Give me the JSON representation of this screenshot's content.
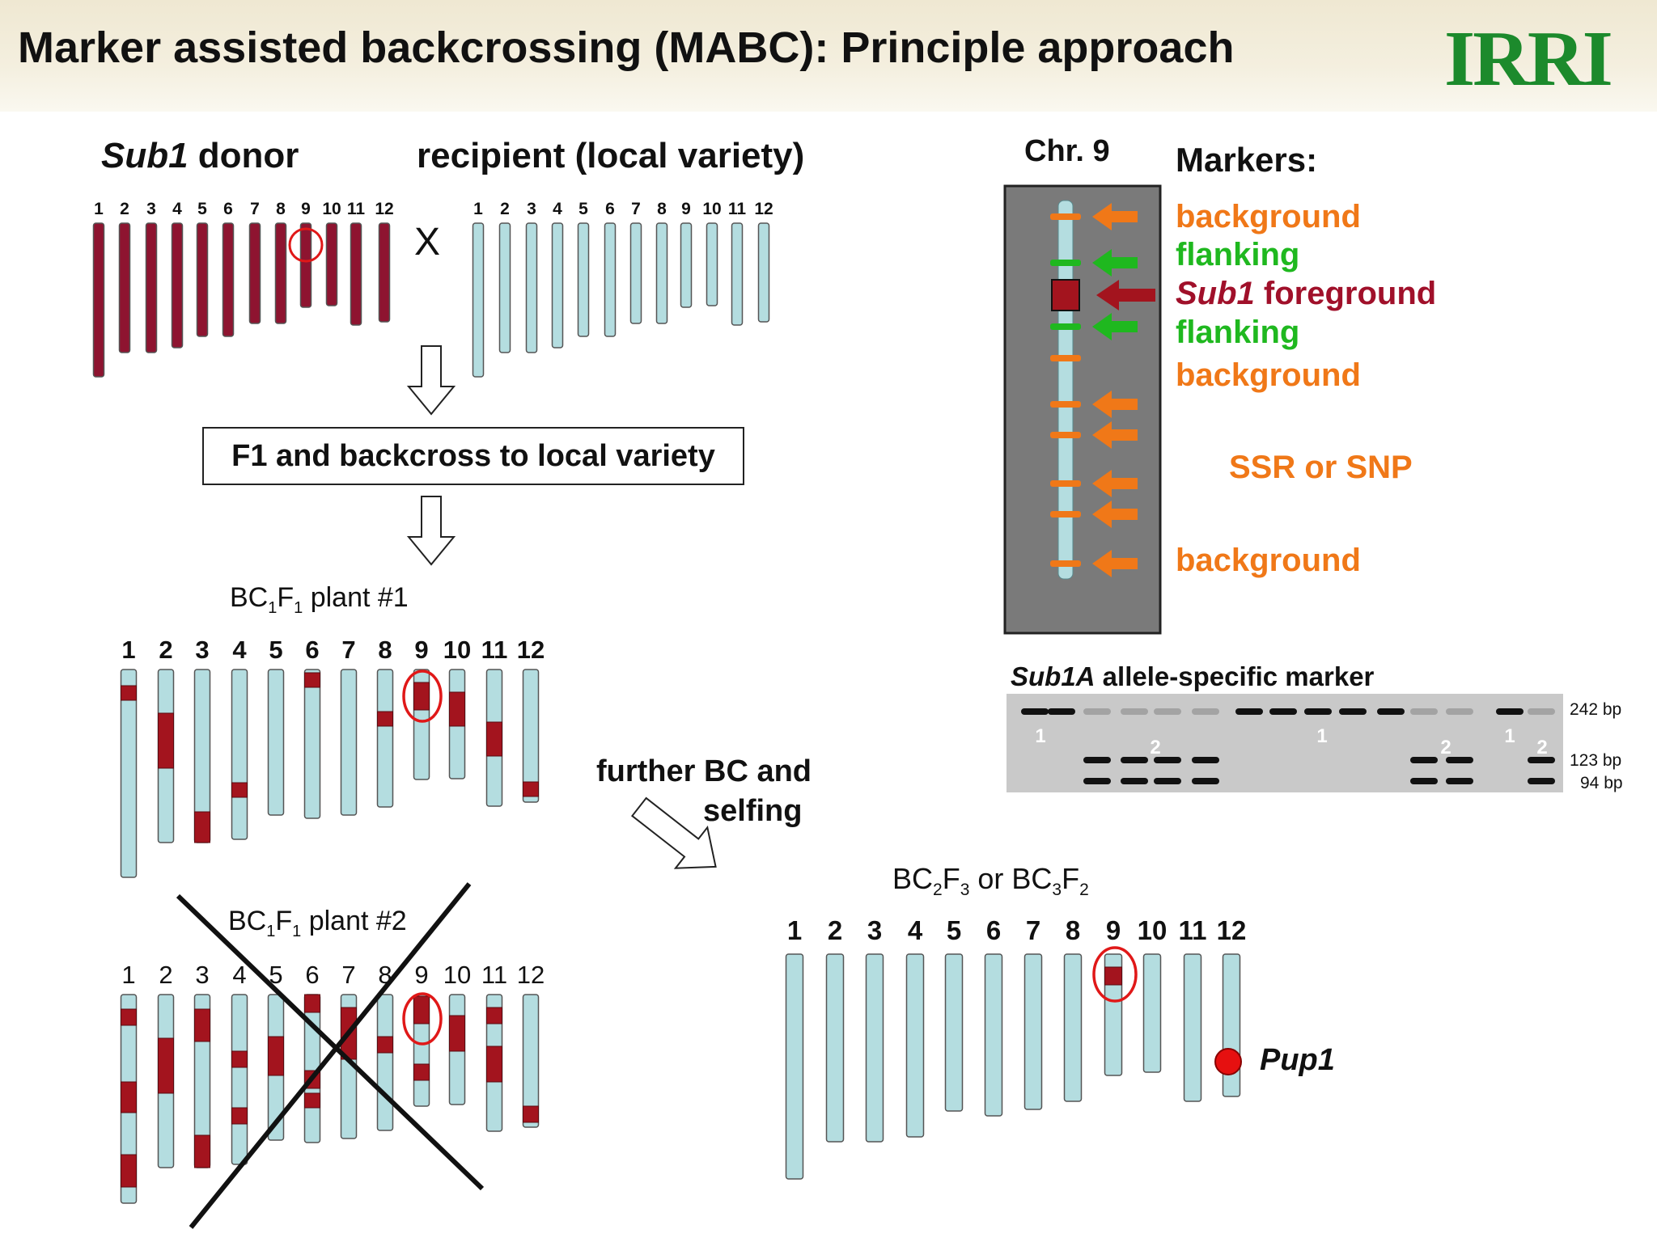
{
  "title": "Marker assisted backcrossing (MABC): Principle approach",
  "logo": "IRRI",
  "donor_label": {
    "italic": "Sub1",
    "rest": " donor"
  },
  "recipient_label": "recipient (local variety)",
  "cross_symbol": "X",
  "step_box": "F1 and backcross to local variety",
  "plant1_label": "BC1F1 plant #1",
  "plant2_label": "BC1F1 plant #2",
  "further_label_line1": "further BC and",
  "further_label_line2": "selfing",
  "final_label": "BC2F3 or BC3F2",
  "pup1_label": "Pup1",
  "chromosome_numbers": [
    "1",
    "2",
    "3",
    "4",
    "5",
    "6",
    "7",
    "8",
    "9",
    "10",
    "11",
    "12"
  ],
  "chr9": {
    "title": "Chr. 9",
    "markers_heading": "Markers:",
    "markers": [
      {
        "text": "background",
        "color": "#f07818"
      },
      {
        "text": "flanking",
        "color": "#1fb81f"
      },
      {
        "italic": "Sub1",
        "text": " foreground",
        "color": "#a0102a"
      },
      {
        "text": "flanking",
        "color": "#1fb81f"
      },
      {
        "text": "background",
        "color": "#f07818"
      },
      {
        "text": "SSR or SNP",
        "color": "#f07818"
      },
      {
        "text": "background",
        "color": "#f07818"
      }
    ]
  },
  "gel": {
    "title_italic": "Sub1A",
    "title_rest": " allele-specific marker",
    "sizes": [
      "242 bp",
      "123 bp",
      "94 bp"
    ],
    "lane_labels": [
      "1",
      "2",
      "1",
      "2",
      "1",
      "2"
    ]
  },
  "colors": {
    "donor": "#8e1430",
    "recipient": "#b4dde0",
    "segment": "#a3141e",
    "orange": "#f07818",
    "green": "#1fb81f",
    "circle": "#e01818"
  }
}
